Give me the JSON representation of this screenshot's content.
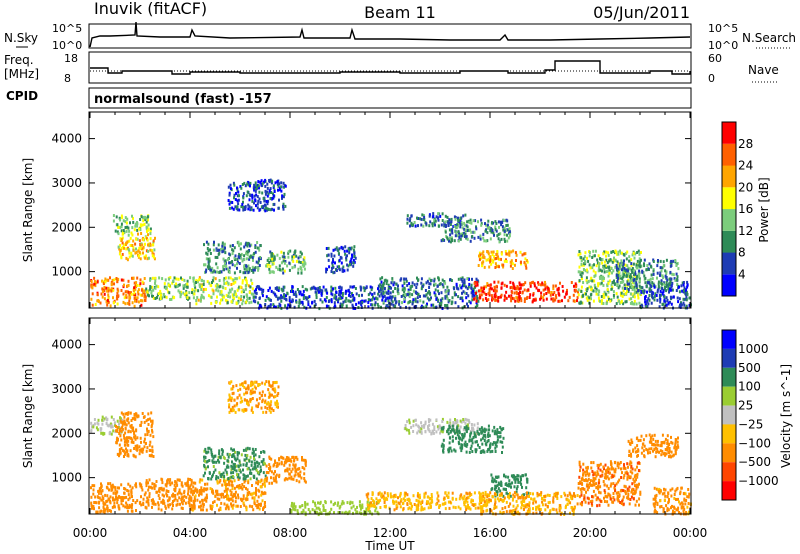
{
  "header": {
    "site": "Inuvik (fitACF)",
    "beam": "Beam 11",
    "date": "05/Jun/2011"
  },
  "top_panels": {
    "nsky": {
      "label": "N.Sky",
      "right_label": "N.Search",
      "left_ticks": [
        "10^5",
        "10^0"
      ],
      "right_ticks": [
        "10^5",
        "10^0"
      ]
    },
    "freq": {
      "label_line1": "Freq.",
      "label_line2": "[MHz]",
      "right_label": "Nave",
      "left_ticks": [
        "18",
        "8"
      ],
      "right_ticks": [
        "60",
        "0"
      ]
    },
    "cpid": {
      "label": "CPID",
      "program": "normalsound (fast) -157"
    }
  },
  "colors": {
    "power_scale": [
      "#0000ff",
      "#1e3cb4",
      "#2e8b57",
      "#7ccd7c",
      "#ffff00",
      "#ffa500",
      "#ff6000",
      "#ff0000"
    ],
    "velocity_scale": [
      "#ff0000",
      "#ff4500",
      "#ff8c00",
      "#ffc000",
      "#c0c0c0",
      "#9acd32",
      "#2e8b57",
      "#1e3cb4",
      "#0000ff"
    ],
    "ground_scatter": "#c0c0c0"
  },
  "chart_data": [
    {
      "type": "line",
      "title": "",
      "series": [
        {
          "name": "N.Sky",
          "x": [
            "00:00",
            "00:10",
            "01:50",
            "04:00",
            "06:00",
            "08:00",
            "12:00",
            "16:00",
            "20:00",
            "24:00"
          ],
          "y_log10": [
            0.3,
            3.4,
            3.8,
            3.5,
            3.3,
            3.1,
            3.0,
            2.9,
            3.2,
            3.6
          ]
        },
        {
          "name": "N.Search",
          "x": [
            "00:00",
            "24:00"
          ],
          "values": [
            0,
            0
          ]
        }
      ],
      "ylim_log10": [
        0,
        5
      ]
    },
    {
      "type": "line",
      "series": [
        {
          "name": "Freq.",
          "x": [
            "00:00",
            "01:00",
            "03:00",
            "04:00",
            "08:00",
            "12:00",
            "14:00",
            "16:00",
            "18:00",
            "18:30",
            "21:00",
            "24:00"
          ],
          "values": [
            13,
            11,
            12,
            11,
            12,
            11,
            12,
            11,
            11,
            15,
            11,
            12
          ]
        },
        {
          "name": "Nave",
          "x": [
            "00:00",
            "24:00"
          ],
          "values": [
            20,
            20
          ]
        }
      ],
      "ylim_left": [
        8,
        18
      ],
      "ylim_right": [
        0,
        60
      ]
    },
    {
      "type": "heatmap",
      "title": "Power",
      "xlabel": "Time UT",
      "ylabel": "Slant Range [km]",
      "x_ticks": [
        "00:00",
        "04:00",
        "08:00",
        "12:00",
        "16:00",
        "20:00",
        "00:00"
      ],
      "y_ticks": [
        1000,
        2000,
        3000,
        4000
      ],
      "xlim_hours": [
        0,
        24
      ],
      "ylim_km": [
        180,
        4600
      ],
      "colorbar_label": "Power [dB]",
      "colorbar_ticks": [
        4,
        8,
        12,
        16,
        20,
        24,
        28
      ],
      "colorbar_range": [
        0,
        32
      ],
      "echo_regions": [
        {
          "t0": 0.0,
          "t1": 2.2,
          "r0": 250,
          "r1": 900,
          "level": 24
        },
        {
          "t0": 0.9,
          "t1": 2.4,
          "r0": 1900,
          "r1": 2300,
          "level": 14
        },
        {
          "t0": 1.1,
          "t1": 2.6,
          "r0": 1300,
          "r1": 1900,
          "level": 20
        },
        {
          "t0": 2.2,
          "t1": 4.2,
          "r0": 400,
          "r1": 900,
          "level": 14
        },
        {
          "t0": 4.1,
          "t1": 6.5,
          "r0": 300,
          "r1": 900,
          "level": 16
        },
        {
          "t0": 4.5,
          "t1": 6.8,
          "r0": 1000,
          "r1": 1700,
          "level": 10
        },
        {
          "t0": 5.5,
          "t1": 7.8,
          "r0": 2400,
          "r1": 3100,
          "level": 6
        },
        {
          "t0": 7.0,
          "t1": 8.6,
          "r0": 1000,
          "r1": 1500,
          "level": 12
        },
        {
          "t0": 6.5,
          "t1": 11.5,
          "r0": 200,
          "r1": 700,
          "level": 6
        },
        {
          "t0": 9.4,
          "t1": 10.6,
          "r0": 1000,
          "r1": 1600,
          "level": 6
        },
        {
          "t0": 11.5,
          "t1": 15.5,
          "r0": 200,
          "r1": 900,
          "level": 8
        },
        {
          "t0": 12.6,
          "t1": 15.0,
          "r0": 2050,
          "r1": 2350,
          "level": 8
        },
        {
          "t0": 14.0,
          "t1": 16.8,
          "r0": 1700,
          "r1": 2200,
          "level": 10
        },
        {
          "t0": 15.5,
          "t1": 17.5,
          "r0": 1100,
          "r1": 1500,
          "level": 22
        },
        {
          "t0": 15.3,
          "t1": 19.5,
          "r0": 350,
          "r1": 800,
          "level": 28
        },
        {
          "t0": 19.5,
          "t1": 22.0,
          "r0": 300,
          "r1": 1500,
          "level": 14
        },
        {
          "t0": 21.0,
          "t1": 23.5,
          "r0": 600,
          "r1": 1300,
          "level": 10
        },
        {
          "t0": 22.0,
          "t1": 24.0,
          "r0": 200,
          "r1": 800,
          "level": 6
        }
      ]
    },
    {
      "type": "heatmap",
      "title": "Velocity",
      "xlabel": "Time UT",
      "ylabel": "Slant Range [km]",
      "x_ticks": [
        "00:00",
        "04:00",
        "08:00",
        "12:00",
        "16:00",
        "20:00",
        "00:00"
      ],
      "y_ticks": [
        1000,
        2000,
        3000,
        4000
      ],
      "xlim_hours": [
        0,
        24
      ],
      "ylim_km": [
        180,
        4600
      ],
      "colorbar_label": "Velocity [m s^-1]",
      "colorbar_ticks": [
        "1000",
        "500",
        "100",
        "25",
        "−25",
        "−100",
        "−500",
        "−1000"
      ],
      "echo_regions": [
        {
          "t0": 0.0,
          "t1": 2.2,
          "r0": 250,
          "r1": 900,
          "value": -300
        },
        {
          "t0": 0.0,
          "t1": 1.3,
          "r0": 2000,
          "r1": 2400,
          "value": 20
        },
        {
          "t0": 1.0,
          "t1": 2.5,
          "r0": 1500,
          "r1": 2500,
          "value": -300
        },
        {
          "t0": 2.2,
          "t1": 4.2,
          "r0": 300,
          "r1": 1000,
          "value": -200
        },
        {
          "t0": 4.0,
          "t1": 7.0,
          "r0": 300,
          "r1": 1000,
          "value": -150
        },
        {
          "t0": 4.5,
          "t1": 7.0,
          "r0": 1000,
          "r1": 1700,
          "value": 150
        },
        {
          "t0": 5.5,
          "t1": 7.5,
          "r0": 2500,
          "r1": 3200,
          "value": -100
        },
        {
          "t0": 7.0,
          "t1": 8.6,
          "r0": 900,
          "r1": 1500,
          "value": -250
        },
        {
          "t0": 8.0,
          "t1": 11.5,
          "r0": 200,
          "r1": 500,
          "value": 60
        },
        {
          "t0": 11.0,
          "t1": 16.0,
          "r0": 300,
          "r1": 700,
          "value": -80
        },
        {
          "t0": 12.5,
          "t1": 15.5,
          "r0": 2000,
          "r1": 2350,
          "value": 20
        },
        {
          "t0": 14.0,
          "t1": 16.5,
          "r0": 1600,
          "r1": 2200,
          "value": 200
        },
        {
          "t0": 16.0,
          "t1": 17.5,
          "r0": 600,
          "r1": 1100,
          "value": 300
        },
        {
          "t0": 15.5,
          "t1": 19.5,
          "r0": 200,
          "r1": 700,
          "value": -90
        },
        {
          "t0": 19.5,
          "t1": 22.0,
          "r0": 400,
          "r1": 1400,
          "value": -400
        },
        {
          "t0": 21.5,
          "t1": 23.5,
          "r0": 1500,
          "r1": 2000,
          "value": -300
        },
        {
          "t0": 22.5,
          "t1": 24.0,
          "r0": 200,
          "r1": 800,
          "value": -150
        }
      ]
    }
  ]
}
